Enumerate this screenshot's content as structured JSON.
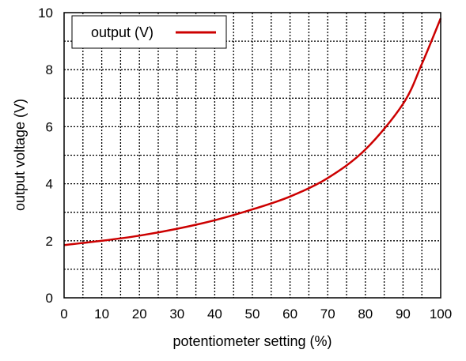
{
  "chart_data": {
    "type": "line",
    "xlabel": "potentiometer setting (%)",
    "ylabel": "output voltage (V)",
    "xlim": [
      0,
      100
    ],
    "ylim": [
      0,
      10
    ],
    "x_ticks": [
      "0",
      "10",
      "20",
      "30",
      "40",
      "50",
      "60",
      "70",
      "80",
      "90",
      "100"
    ],
    "y_ticks": [
      "0",
      "2",
      "4",
      "6",
      "8",
      "10"
    ],
    "grid": true,
    "legend_position": "top-left",
    "series": [
      {
        "name": "output (V)",
        "color": "#cc0000",
        "x": [
          0,
          10,
          20,
          30,
          40,
          50,
          60,
          70,
          80,
          90,
          95,
          100
        ],
        "y": [
          1.85,
          2.0,
          2.18,
          2.42,
          2.72,
          3.1,
          3.55,
          4.2,
          5.2,
          6.8,
          8.2,
          9.8
        ]
      }
    ]
  }
}
